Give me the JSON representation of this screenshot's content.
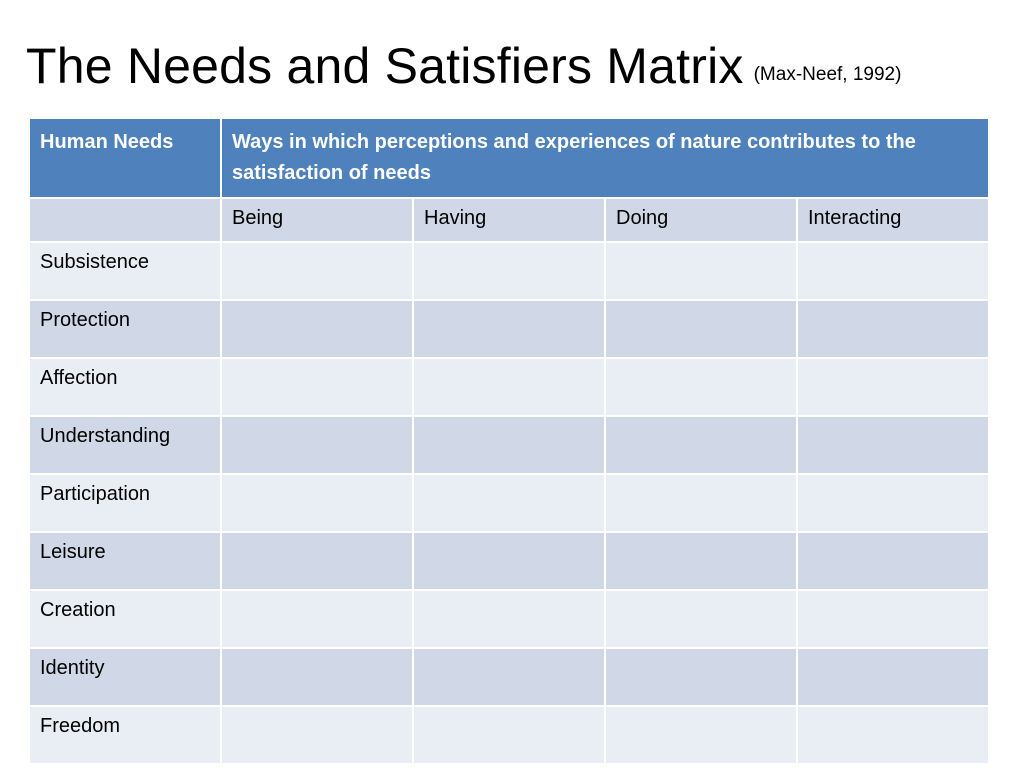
{
  "slide": {
    "title": "The Needs and Satisfiers Matrix",
    "citation": "(Max-Neef, 1992)"
  },
  "table": {
    "header": {
      "needs_label": "Human Needs",
      "ways_label": "Ways in which perceptions and experiences of nature contributes to the satisfaction of needs"
    },
    "columns": [
      "Being",
      "Having",
      "Doing",
      "Interacting"
    ],
    "needs": [
      "Subsistence",
      "Protection",
      "Affection",
      "Understanding",
      "Participation",
      "Leisure",
      "Creation",
      "Identity",
      "Freedom"
    ]
  },
  "colors": {
    "header_fill": "#4f81bd",
    "row_dark": "#d0d8e8",
    "row_light": "#e9edf4"
  }
}
